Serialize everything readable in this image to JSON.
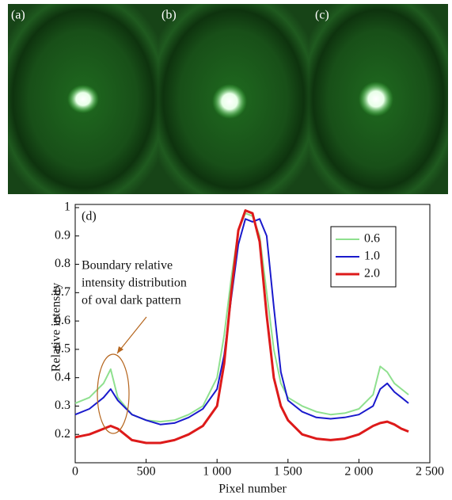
{
  "panels": [
    {
      "label": "(a)"
    },
    {
      "label": "(b)"
    },
    {
      "label": "(c)"
    }
  ],
  "chart_data": {
    "type": "line",
    "panel_label": "(d)",
    "x_label": "Pixel number",
    "y_label": "Relative intensity",
    "annotation": [
      "Boundary relative",
      "intensity distribution",
      "of oval dark pattern"
    ],
    "x": [
      0,
      100,
      200,
      250,
      300,
      400,
      500,
      600,
      700,
      800,
      900,
      1000,
      1050,
      1100,
      1150,
      1200,
      1250,
      1300,
      1350,
      1400,
      1450,
      1500,
      1600,
      1700,
      1800,
      1900,
      2000,
      2100,
      2150,
      2200,
      2250,
      2300,
      2350
    ],
    "series": [
      {
        "name": "0.6",
        "color": "#8fe08f",
        "values": [
          0.31,
          0.33,
          0.38,
          0.43,
          0.33,
          0.27,
          0.25,
          0.245,
          0.25,
          0.27,
          0.3,
          0.4,
          0.55,
          0.75,
          0.92,
          0.98,
          0.97,
          0.9,
          0.7,
          0.5,
          0.38,
          0.33,
          0.3,
          0.28,
          0.27,
          0.275,
          0.29,
          0.34,
          0.44,
          0.42,
          0.38,
          0.36,
          0.34
        ]
      },
      {
        "name": "1.0",
        "color": "#1a1acc",
        "values": [
          0.27,
          0.29,
          0.33,
          0.36,
          0.32,
          0.27,
          0.25,
          0.235,
          0.24,
          0.26,
          0.29,
          0.36,
          0.48,
          0.68,
          0.87,
          0.96,
          0.95,
          0.96,
          0.9,
          0.65,
          0.42,
          0.32,
          0.28,
          0.26,
          0.255,
          0.26,
          0.27,
          0.3,
          0.36,
          0.38,
          0.35,
          0.33,
          0.31
        ]
      },
      {
        "name": "2.0",
        "color": "#dd1a1a",
        "values": [
          0.19,
          0.2,
          0.22,
          0.23,
          0.22,
          0.18,
          0.17,
          0.17,
          0.18,
          0.2,
          0.23,
          0.3,
          0.45,
          0.7,
          0.92,
          0.99,
          0.98,
          0.88,
          0.62,
          0.4,
          0.3,
          0.25,
          0.2,
          0.185,
          0.18,
          0.185,
          0.2,
          0.23,
          0.24,
          0.245,
          0.235,
          0.22,
          0.21
        ]
      }
    ],
    "xlim": [
      0,
      2500
    ],
    "ylim": [
      0.1,
      1
    ],
    "xticks": [
      0,
      500,
      {
        "value": 1000,
        "label": "1 000"
      },
      {
        "value": 1500,
        "label": "1 500"
      },
      {
        "value": 2000,
        "label": "2 000"
      },
      {
        "value": 2500,
        "label": "2 500"
      }
    ],
    "yticks": [
      0.2,
      0.3,
      0.4,
      0.5,
      0.6,
      0.7,
      0.8,
      0.9,
      1
    ],
    "legend": "upper right"
  }
}
